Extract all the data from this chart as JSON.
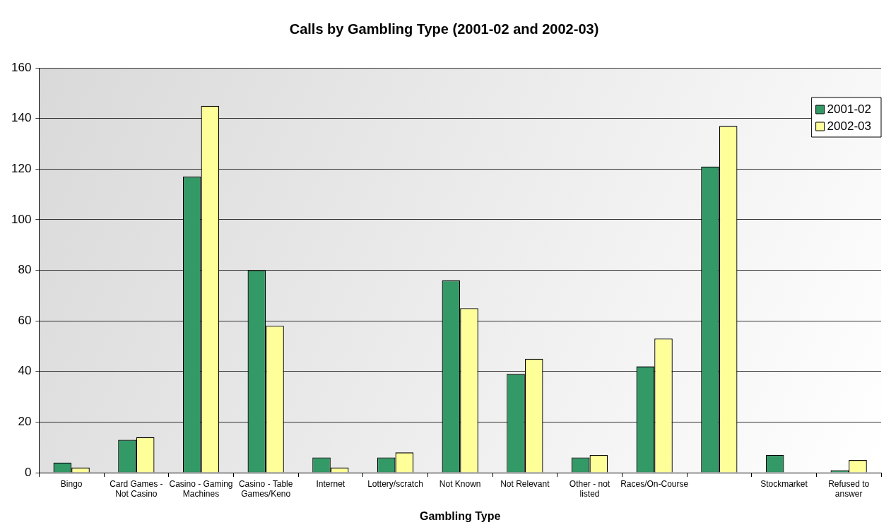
{
  "chart_data": {
    "type": "bar",
    "title": "Calls by Gambling Type (2001-02 and 2002-03)",
    "xlabel": "Gambling Type",
    "categories": [
      "Bingo",
      "Card Games - Not Casino",
      "Casino - Gaming Machines",
      "Casino - Table Games/Keno",
      "Internet",
      "Lottery/scratch",
      "Not Known",
      "Not Relevant",
      "Other - not listed",
      "Races/On-Course",
      null,
      "Stockmarket",
      "Refused to answer"
    ],
    "series": [
      {
        "name": "2001-02",
        "color": "#339966",
        "values": [
          4,
          13,
          117,
          80,
          6,
          6,
          76,
          39,
          6,
          42,
          121,
          7,
          1
        ]
      },
      {
        "name": "2002-03",
        "color": "#ffff99",
        "values": [
          2,
          14,
          145,
          58,
          2,
          8,
          65,
          45,
          7,
          53,
          137,
          null,
          5
        ]
      }
    ],
    "ylim": [
      0,
      160
    ],
    "yticks": [
      0,
      20,
      40,
      60,
      80,
      100,
      120,
      140,
      160
    ],
    "grid": "y",
    "legend": "top right"
  }
}
